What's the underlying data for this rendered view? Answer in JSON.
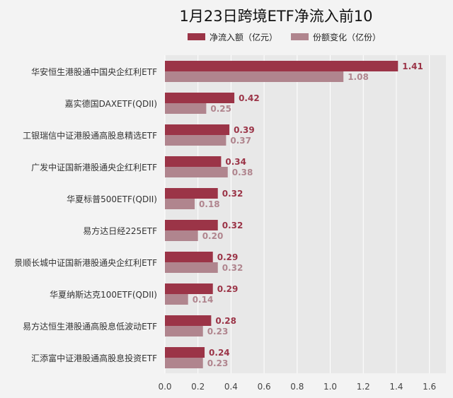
{
  "colors": {
    "background": "#f3f3f3",
    "plot_background": "#e8e8e8",
    "gridline": "#ffffff",
    "series_primary": "#9b3447",
    "series_secondary": "#b0858e"
  },
  "chart_data": {
    "type": "bar",
    "orientation": "horizontal",
    "title": "1月23日跨境ETF净流入前10",
    "categories": [
      "华安恒生港股通中国央企红利ETF",
      "嘉实德国DAXETF(QDII)",
      "工银瑞信中证港股通高股息精选ETF",
      "广发中证国新港股通央企红利ETF",
      "华夏标普500ETF(QDII)",
      "易方达日经225ETF",
      "景顺长城中证国新港股通央企红利ETF",
      "华夏纳斯达克100ETF(QDII)",
      "易方达恒生港股通高股息低波动ETF",
      "汇添富中证港股通高股息投资ETF"
    ],
    "series": [
      {
        "name": "净流入额（亿元）",
        "values": [
          1.41,
          0.42,
          0.39,
          0.34,
          0.32,
          0.32,
          0.29,
          0.29,
          0.28,
          0.24
        ],
        "labels": [
          "1.41",
          "0.42",
          "0.39",
          "0.34",
          "0.32",
          "0.32",
          "0.29",
          "0.29",
          "0.28",
          "0.24"
        ]
      },
      {
        "name": "份额变化（亿份）",
        "values": [
          1.08,
          0.25,
          0.37,
          0.38,
          0.18,
          0.2,
          0.32,
          0.14,
          0.23,
          0.23
        ],
        "labels": [
          "1.08",
          "0.25",
          "0.37",
          "0.38",
          "0.18",
          "0.20",
          "0.32",
          "0.14",
          "0.23",
          "0.23"
        ]
      }
    ],
    "xlim": [
      0,
      1.7
    ],
    "xticks": [
      0,
      0.2,
      0.4,
      0.6,
      0.8,
      1.0,
      1.2,
      1.4,
      1.6
    ],
    "xtick_labels": [
      "0.0",
      "0.2",
      "0.4",
      "0.6",
      "0.8",
      "1.0",
      "1.2",
      "1.4",
      "1.6"
    ],
    "grid": true,
    "legend_position": "top-center",
    "xlabel": "",
    "ylabel": ""
  }
}
